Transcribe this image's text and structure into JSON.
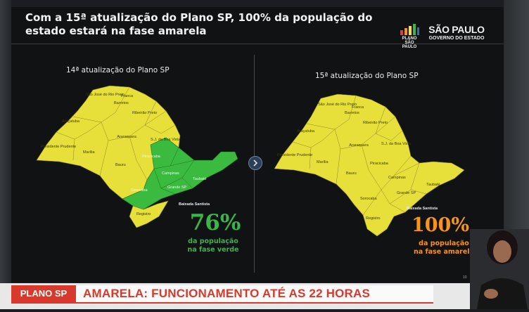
{
  "slide": {
    "title": "Com a 15ª atualização do Plano SP, 100% da população do estado estará na fase amarela",
    "logo_plano": "PLANO SÃO PAULO",
    "logo_sp_main": "SÃO PAULO",
    "logo_sp_sub": "GOVERNO DO ESTADO",
    "page_number": "10"
  },
  "map_left": {
    "label": "14ª atualização do Plano SP",
    "stat_value": "76%",
    "stat_caption": "da população\nna fase verde",
    "regions": [
      {
        "name": "Franca",
        "phase": "amarela"
      },
      {
        "name": "São José do Rio Preto",
        "phase": "amarela"
      },
      {
        "name": "Barretos",
        "phase": "amarela"
      },
      {
        "name": "Ribeirão Preto",
        "phase": "amarela"
      },
      {
        "name": "Araçatuba",
        "phase": "amarela"
      },
      {
        "name": "Araraquara",
        "phase": "amarela"
      },
      {
        "name": "S.J. da Boa Vista",
        "phase": "amarela"
      },
      {
        "name": "Presidente Prudente",
        "phase": "amarela"
      },
      {
        "name": "Marília",
        "phase": "amarela"
      },
      {
        "name": "Piracicaba",
        "phase": "verde"
      },
      {
        "name": "Bauru",
        "phase": "amarela"
      },
      {
        "name": "Campinas",
        "phase": "verde"
      },
      {
        "name": "Taubaté",
        "phase": "verde"
      },
      {
        "name": "Grande SP",
        "phase": "verde"
      },
      {
        "name": "Sorocaba",
        "phase": "verde"
      },
      {
        "name": "Baixada Santista",
        "phase": "verde"
      },
      {
        "name": "Registro",
        "phase": "amarela"
      }
    ]
  },
  "map_right": {
    "label": "15ª atualização do Plano SP",
    "stat_value": "100%",
    "stat_caption": "da população\nna fase amarela",
    "regions": [
      {
        "name": "Franca",
        "phase": "amarela"
      },
      {
        "name": "São José do Rio Preto",
        "phase": "amarela"
      },
      {
        "name": "Barretos",
        "phase": "amarela"
      },
      {
        "name": "Ribeirão Preto",
        "phase": "amarela"
      },
      {
        "name": "Araçatuba",
        "phase": "amarela"
      },
      {
        "name": "Araraquara",
        "phase": "amarela"
      },
      {
        "name": "S.J. da Boa Vista",
        "phase": "amarela"
      },
      {
        "name": "Presidente Prudente",
        "phase": "amarela"
      },
      {
        "name": "Marília",
        "phase": "amarela"
      },
      {
        "name": "Piracicaba",
        "phase": "amarela"
      },
      {
        "name": "Bauru",
        "phase": "amarela"
      },
      {
        "name": "Campinas",
        "phase": "amarela"
      },
      {
        "name": "Taubaté",
        "phase": "amarela"
      },
      {
        "name": "Grande SP",
        "phase": "amarela"
      },
      {
        "name": "Sorocaba",
        "phase": "amarela"
      },
      {
        "name": "Baixada Santista",
        "phase": "amarela"
      },
      {
        "name": "Registro",
        "phase": "amarela"
      }
    ]
  },
  "ticker": {
    "tag": "PLANO SP",
    "headline": "AMARELA: FUNCIONAMENTO ATÉ AS 22 HORAS"
  },
  "colors": {
    "yellow_phase": "#e8e03a",
    "green_phase": "#3aba3e",
    "stat_green": "#39b54a",
    "stat_orange": "#f7941d",
    "ticker_red": "#d73a2d"
  }
}
